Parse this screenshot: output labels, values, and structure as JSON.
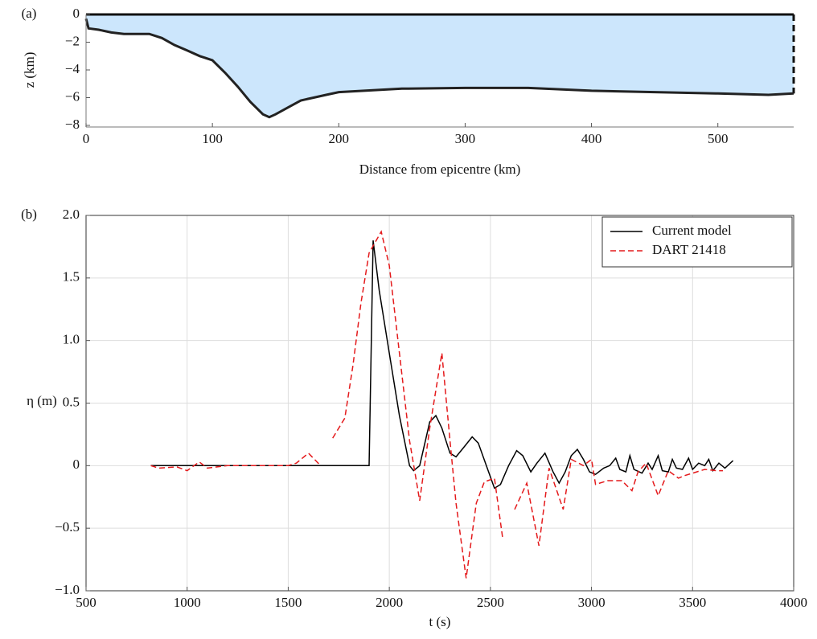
{
  "chart_data": [
    {
      "type": "area",
      "panel_label": "(a)",
      "x_label": "Distance from epicentre (km)",
      "y_label": "z (km)",
      "xlim": [
        0,
        560
      ],
      "ylim": [
        -8,
        0
      ],
      "xticks": [
        0,
        100,
        200,
        300,
        400,
        500
      ],
      "yticks": [
        {
          "value": -8,
          "label": "−8"
        },
        {
          "value": -6,
          "label": "−6"
        },
        {
          "value": -4,
          "label": "−4"
        },
        {
          "value": -2,
          "label": "−2"
        },
        0
      ],
      "grid": false,
      "color": "#cce6fc",
      "series": [
        {
          "color": "#222222",
          "x": [
            0,
            2,
            10,
            20,
            30,
            50,
            60,
            70,
            80,
            90,
            100,
            110,
            120,
            130,
            140,
            145,
            150,
            160,
            170,
            180,
            190,
            200,
            220,
            250,
            300,
            350,
            400,
            450,
            500,
            540,
            560
          ],
          "values": [
            -0.3,
            -1.0,
            -1.1,
            -1.3,
            -1.4,
            -1.4,
            -1.7,
            -2.2,
            -2.6,
            -3.0,
            -3.3,
            -4.2,
            -5.2,
            -6.3,
            -7.2,
            -7.4,
            -7.2,
            -6.7,
            -6.2,
            -6.0,
            -5.8,
            -5.6,
            -5.5,
            -5.35,
            -5.3,
            -5.3,
            -5.5,
            -5.6,
            -5.7,
            -5.8,
            -5.7
          ]
        }
      ]
    },
    {
      "type": "line",
      "panel_label": "(b)",
      "x_label": "t (s)",
      "y_label": "η (m)",
      "xlim": [
        500,
        4000
      ],
      "ylim": [
        -1.0,
        2.0
      ],
      "xticks": [
        500,
        1000,
        1500,
        2000,
        2500,
        3000,
        3500,
        4000
      ],
      "yticks": [
        {
          "value": -1.0,
          "label": "−1.0"
        },
        {
          "value": -0.5,
          "label": "−0.5"
        },
        0,
        0.5,
        {
          "value": 1.0,
          "label": "1.0"
        },
        1.5,
        {
          "value": 2.0,
          "label": "2.0"
        }
      ],
      "grid": true,
      "legend": "upper right",
      "series": [
        {
          "name": "Current model",
          "color": "#000000",
          "dash": "solid",
          "x": [
            820,
            1900,
            1920,
            1950,
            2000,
            2050,
            2100,
            2120,
            2150,
            2200,
            2230,
            2260,
            2300,
            2330,
            2370,
            2410,
            2440,
            2480,
            2520,
            2550,
            2590,
            2630,
            2660,
            2700,
            2730,
            2770,
            2810,
            2840,
            2870,
            2900,
            2930,
            2960,
            2990,
            3020,
            3060,
            3090,
            3120,
            3140,
            3170,
            3190,
            3210,
            3250,
            3280,
            3300,
            3330,
            3350,
            3380,
            3400,
            3420,
            3450,
            3480,
            3500,
            3530,
            3560,
            3580,
            3600,
            3630,
            3660,
            3700
          ],
          "values": [
            0,
            0,
            1.8,
            1.4,
            0.9,
            0.4,
            0.0,
            -0.04,
            0.0,
            0.35,
            0.4,
            0.3,
            0.1,
            0.07,
            0.15,
            0.23,
            0.18,
            0.0,
            -0.18,
            -0.15,
            0.0,
            0.12,
            0.08,
            -0.05,
            0.02,
            0.1,
            -0.05,
            -0.14,
            -0.05,
            0.08,
            0.13,
            0.05,
            -0.05,
            -0.07,
            -0.02,
            0.0,
            0.06,
            -0.03,
            -0.05,
            0.08,
            -0.03,
            -0.06,
            0.02,
            -0.03,
            0.08,
            -0.04,
            -0.05,
            0.05,
            -0.02,
            -0.03,
            0.06,
            -0.03,
            0.02,
            0.0,
            0.05,
            -0.04,
            0.02,
            -0.02,
            0.04
          ]
        },
        {
          "name": "DART 21418",
          "color": "#e41a1c",
          "dash": "dashed",
          "x": [
            820,
            860,
            950,
            1000,
            1060,
            1100,
            1200,
            1300,
            1400,
            1500,
            1540,
            1600,
            1660,
            null,
            1720,
            1780,
            1820,
            1860,
            1900,
            1960,
            2000,
            2050,
            2100,
            2150,
            2200,
            2260,
            2300,
            2330,
            2380,
            2430,
            2470,
            2520,
            2560,
            null,
            2620,
            2680,
            2740,
            2790,
            2860,
            2900,
            2960,
            3000,
            3020,
            3080,
            3150,
            3200,
            3230,
            3270,
            3330,
            3380,
            3430,
            3460,
            3500,
            3560,
            3620,
            3650
          ],
          "values": [
            0,
            -0.02,
            -0.01,
            -0.04,
            0.03,
            -0.02,
            0.0,
            0.0,
            0.0,
            0.0,
            0.02,
            0.1,
            0.0,
            null,
            0.22,
            0.38,
            0.8,
            1.3,
            1.7,
            1.87,
            1.6,
            0.9,
            0.2,
            -0.28,
            0.3,
            0.9,
            0.2,
            -0.3,
            -0.9,
            -0.3,
            -0.13,
            -0.1,
            -0.57,
            null,
            -0.35,
            -0.14,
            -0.64,
            -0.02,
            -0.35,
            0.05,
            0.0,
            0.05,
            -0.15,
            -0.12,
            -0.12,
            -0.2,
            -0.05,
            0.02,
            -0.24,
            -0.04,
            -0.1,
            -0.08,
            -0.06,
            -0.03,
            -0.04,
            -0.04
          ]
        }
      ]
    }
  ]
}
